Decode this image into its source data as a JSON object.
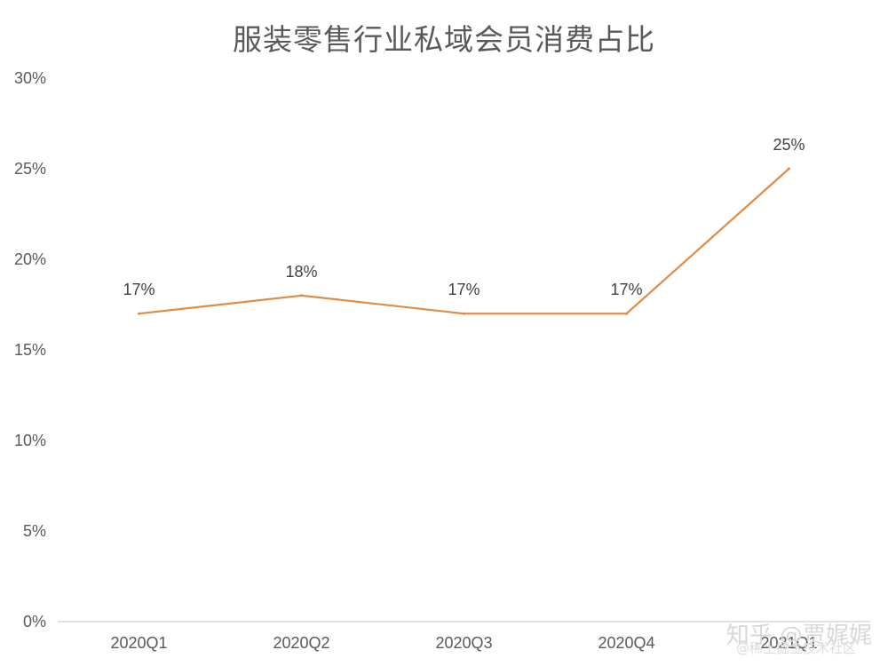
{
  "chart_data": {
    "type": "line",
    "title": "服装零售行业私域会员消费占比",
    "categories": [
      "2020Q1",
      "2020Q2",
      "2020Q3",
      "2020Q4",
      "2021Q1"
    ],
    "series": [
      {
        "values": [
          17,
          18,
          17,
          17,
          25
        ],
        "labels": [
          "17%",
          "18%",
          "17%",
          "17%",
          "25%"
        ],
        "color": "#E08A44"
      }
    ],
    "ylim": [
      0,
      30
    ],
    "yticks": [
      0,
      5,
      10,
      15,
      20,
      25,
      30
    ],
    "ytick_labels": [
      "0%",
      "5%",
      "10%",
      "15%",
      "20%",
      "25%",
      "30%"
    ],
    "grid": false,
    "legend": "none",
    "axis_color": "#D9D9D9"
  },
  "watermark": {
    "main": "知乎 @贾娓娓",
    "sub": "@稀土掘金技术社区"
  }
}
